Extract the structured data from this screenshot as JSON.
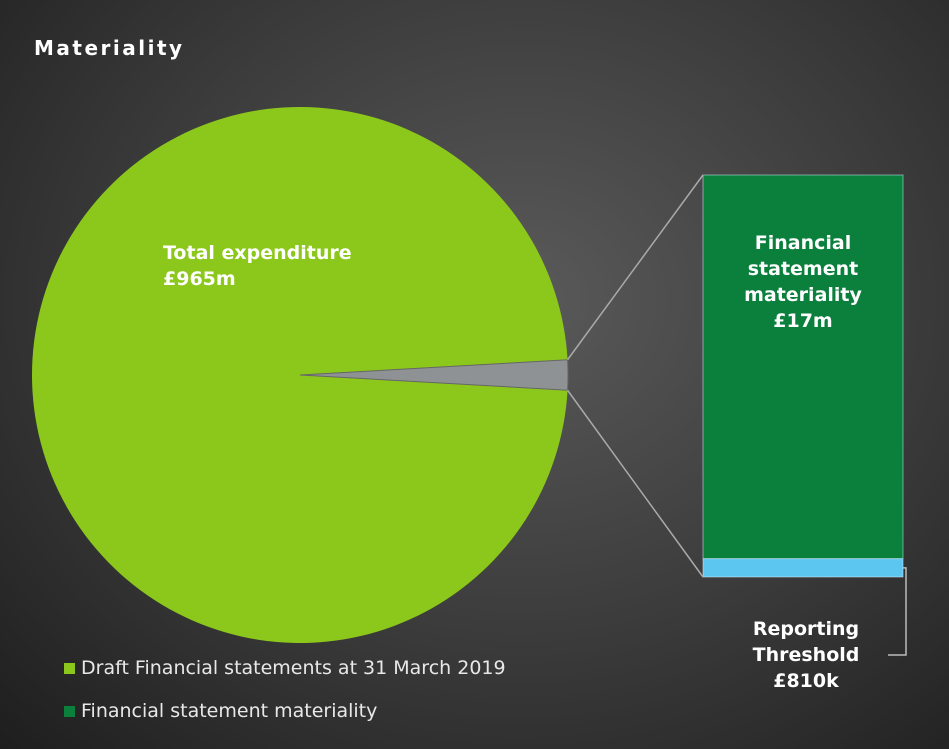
{
  "chart_data": {
    "type": "bar-of-pie",
    "title": "Materiality",
    "pie": {
      "name": "Total expenditure",
      "value": 965,
      "value_label": "£965m",
      "color": "#8cc81c"
    },
    "other_color": "#8e9294",
    "bar": [
      {
        "name": "Financial statement materiality",
        "value": 17,
        "value_label": "£17m",
        "color": "#0b7f3c"
      },
      {
        "name": "Reporting Threshold",
        "value": 0.81,
        "value_label": "£810k",
        "color": "#5cc6f0"
      }
    ],
    "legend": [
      {
        "name": "Draft Financial statements at 31 March 2019",
        "color": "#8cc81c"
      },
      {
        "name": "Financial statement materiality",
        "color": "#0b7f3c"
      }
    ]
  }
}
